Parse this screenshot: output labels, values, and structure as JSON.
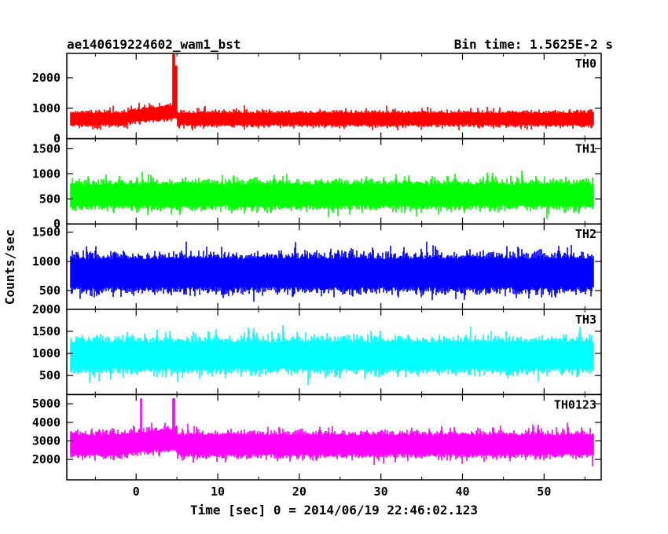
{
  "chart_data": {
    "type": "line",
    "title": "ae140619224602_wam1_bst",
    "subtitle": "Bin time: 1.5625E-2 s",
    "xlabel": "Time [sec] 0 = 2014/06/19 22:46:02.123",
    "ylabel": "Counts/sec",
    "xlim": [
      -8.5,
      57
    ],
    "x_ticks": [
      0,
      10,
      20,
      30,
      40,
      50
    ],
    "x_tick_labels": [
      "0",
      "10",
      "20",
      "30",
      "40",
      "50"
    ],
    "data_x_range": [
      -8,
      56
    ],
    "bin_time_s": 0.015625,
    "panels": [
      {
        "name": "TH0",
        "color": "#ff0000",
        "ylim": [
          0,
          2800
        ],
        "y_ticks": [
          0,
          1000,
          2000
        ],
        "y_tick_labels": [
          "0",
          "1000",
          "2000"
        ],
        "baseline_mean": 650,
        "noise_amplitude": 330,
        "spikes": [
          {
            "x": 4.6,
            "y": 2800
          },
          {
            "x": 4.9,
            "y": 2400
          }
        ],
        "bumps": [
          {
            "x_start": -1,
            "x_end": 5,
            "level": 900
          }
        ]
      },
      {
        "name": "TH1",
        "color": "#00ff00",
        "ylim": [
          0,
          1700
        ],
        "y_ticks": [
          0,
          500,
          1000,
          1500
        ],
        "y_tick_labels": [
          "0",
          "500",
          "1000",
          "1500"
        ],
        "baseline_mean": 580,
        "noise_amplitude": 370,
        "spikes": [],
        "bumps": []
      },
      {
        "name": "TH2",
        "color": "#0000ff",
        "ylim": [
          180,
          1640
        ],
        "y_ticks": [
          500,
          1000,
          1500
        ],
        "y_tick_labels": [
          "500",
          "1000",
          "1500"
        ],
        "baseline_mean": 800,
        "noise_amplitude": 430,
        "spikes": [],
        "bumps": []
      },
      {
        "name": "TH3",
        "color": "#00ffff",
        "ylim": [
          70,
          2000
        ],
        "y_ticks": [
          500,
          1000,
          1500,
          2000
        ],
        "y_tick_labels": [
          "500",
          "1000",
          "1500",
          "2000"
        ],
        "baseline_mean": 960,
        "noise_amplitude": 520,
        "spikes": [],
        "bumps": []
      },
      {
        "name": "TH0123",
        "color": "#ff00ff",
        "ylim": [
          900,
          5500
        ],
        "y_ticks": [
          2000,
          3000,
          4000,
          5000
        ],
        "y_tick_labels": [
          "2000",
          "3000",
          "4000",
          "5000"
        ],
        "baseline_mean": 2800,
        "noise_amplitude": 900,
        "spikes": [
          {
            "x": 0.6,
            "y": 5300
          },
          {
            "x": 4.6,
            "y": 5300
          }
        ],
        "bumps": [
          {
            "x_start": -1,
            "x_end": 5,
            "level": 3100
          }
        ]
      }
    ]
  }
}
